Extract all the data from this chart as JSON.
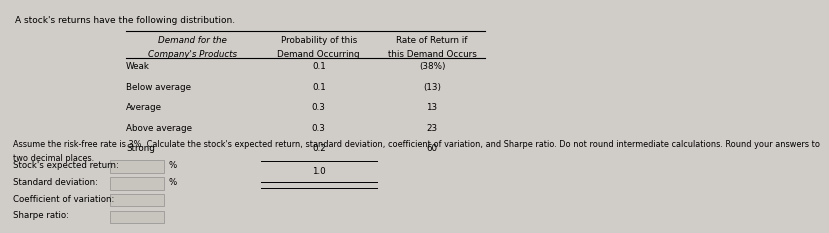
{
  "title_text": "A stock's returns have the following distribution.",
  "col_headers": [
    [
      "Demand for the",
      "Company's Products"
    ],
    [
      "Probability of this",
      "Demand Occurring"
    ],
    [
      "Rate of Return if",
      "this Demand Occurs"
    ]
  ],
  "rows": [
    [
      "Weak",
      "0.1",
      "(38%)"
    ],
    [
      "Below average",
      "0.1",
      "(13)"
    ],
    [
      "Average",
      "0.3",
      "13"
    ],
    [
      "Above average",
      "0.3",
      "23"
    ],
    [
      "Strong",
      "0.2",
      "60"
    ]
  ],
  "sum_row_val": "1.0",
  "assumption_text": "Assume the risk-free rate is 3%. Calculate the stock's expected return, standard deviation, coefficient of variation, and Sharpe ratio. Do not round intermediate calculations. Round your answers to two decimal places.",
  "answer_labels": [
    "Stock's expected return:",
    "Standard deviation:",
    "Coefficient of variation:",
    "Sharpe ratio:"
  ],
  "answer_suffixes": [
    "%",
    "%",
    "",
    ""
  ],
  "bg_color": "#d0ccc8",
  "text_color": "#000000",
  "line_color": "#000000",
  "box_face_color": "#c8c4be",
  "box_edge_color": "#999999"
}
